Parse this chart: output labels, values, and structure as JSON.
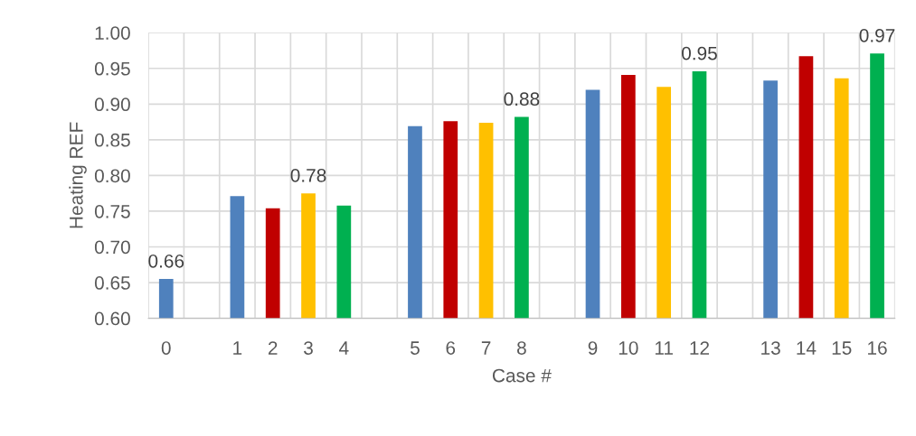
{
  "chart_data": {
    "type": "bar",
    "xlabel": "Case #",
    "ylabel": "Heating REF",
    "categories": [
      "0",
      null,
      "1",
      "2",
      "3",
      "4",
      null,
      "5",
      "6",
      "7",
      "8",
      null,
      "9",
      "10",
      "11",
      "12",
      null,
      "13",
      "14",
      "15",
      "16"
    ],
    "values": [
      0.655,
      null,
      0.771,
      0.754,
      0.775,
      0.758,
      null,
      0.869,
      0.876,
      0.874,
      0.882,
      null,
      0.92,
      0.941,
      0.924,
      0.946,
      null,
      0.933,
      0.967,
      0.936,
      0.971
    ],
    "colors": [
      "#4f81bd",
      null,
      "#4f81bd",
      "#c00000",
      "#ffc000",
      "#00b050",
      null,
      "#4f81bd",
      "#c00000",
      "#ffc000",
      "#00b050",
      null,
      "#4f81bd",
      "#c00000",
      "#ffc000",
      "#00b050",
      null,
      "#4f81bd",
      "#c00000",
      "#ffc000",
      "#00b050"
    ],
    "value_labels": [
      "0.66",
      null,
      null,
      null,
      "0.78",
      null,
      null,
      null,
      null,
      null,
      "0.88",
      null,
      null,
      null,
      null,
      "0.95",
      null,
      null,
      null,
      null,
      "0.97"
    ],
    "ylim": [
      0.6,
      1.0
    ],
    "yticks": [
      {
        "value": 0.6,
        "label": "0.60"
      },
      {
        "value": 0.65,
        "label": "0.65"
      },
      {
        "value": 0.7,
        "label": "0.70"
      },
      {
        "value": 0.75,
        "label": "0.75"
      },
      {
        "value": 0.8,
        "label": "0.80"
      },
      {
        "value": 0.85,
        "label": "0.85"
      },
      {
        "value": 0.9,
        "label": "0.90"
      },
      {
        "value": 0.95,
        "label": "0.95"
      },
      {
        "value": 1.0,
        "label": "1.00"
      }
    ],
    "grid": true
  }
}
